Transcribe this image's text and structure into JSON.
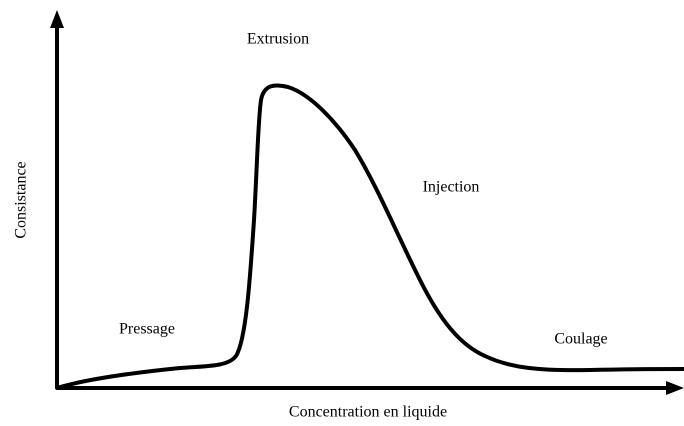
{
  "x_axis_label": "Concentration en liquide",
  "y_axis_label": "Consistance",
  "regions": [
    {
      "label": "Extrusion"
    },
    {
      "label": "Injection"
    },
    {
      "label": "Pressage"
    },
    {
      "label": "Coulage"
    }
  ]
}
